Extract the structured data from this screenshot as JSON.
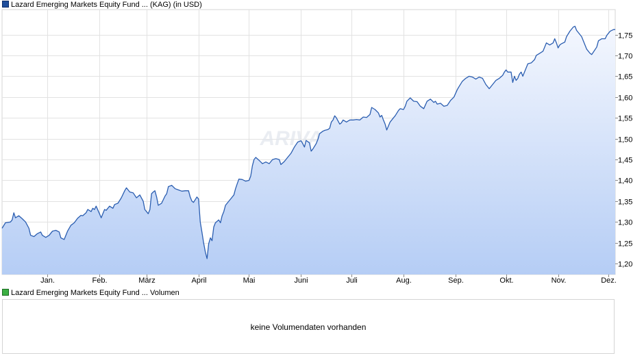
{
  "legend": {
    "price_label": "Lazard Emerging Markets Equity Fund ... (KAG)  (in USD)",
    "price_color": "#1f4e9c",
    "volume_label": "Lazard Emerging Markets Equity Fund ... Volumen",
    "volume_color": "#3cb043"
  },
  "watermark": "ARIVA.DE",
  "volume_panel": {
    "message": "keine Volumendaten vorhanden"
  },
  "chart_data": {
    "type": "area",
    "title": "",
    "xlabel": "",
    "ylabel": "",
    "x_ticks": [
      {
        "label": "Jan.",
        "x": 1
      },
      {
        "label": "Feb.",
        "x": 32
      },
      {
        "label": "März",
        "x": 60
      },
      {
        "label": "April",
        "x": 91
      },
      {
        "label": "Mai",
        "x": 121
      },
      {
        "label": "Juni",
        "x": 152
      },
      {
        "label": "Juli",
        "x": 182
      },
      {
        "label": "Aug.",
        "x": 213
      },
      {
        "label": "Sep.",
        "x": 244
      },
      {
        "label": "Okt.",
        "x": 274
      },
      {
        "label": "Nov.",
        "x": 305
      },
      {
        "label": "Dez.",
        "x": 335
      }
    ],
    "xlim": [
      -26,
      339
    ],
    "y_ticks": [
      "1,20",
      "1,25",
      "1,30",
      "1,35",
      "1,40",
      "1,45",
      "1,50",
      "1,55",
      "1,60",
      "1,65",
      "1,70",
      "1,75"
    ],
    "ylim": [
      1.174,
      1.81
    ],
    "y_tick_values": [
      1.2,
      1.25,
      1.3,
      1.35,
      1.4,
      1.45,
      1.5,
      1.55,
      1.6,
      1.65,
      1.7,
      1.75
    ],
    "grid": true,
    "line_color": "#2a5db0",
    "fill_top_color": "#f4f7fe",
    "fill_bottom_color": "#b5cdf5",
    "series": [
      {
        "points": [
          [
            -26,
            1.285
          ],
          [
            -24,
            1.298
          ],
          [
            -21,
            1.3
          ],
          [
            -20,
            1.305
          ],
          [
            -19,
            1.322
          ],
          [
            -18,
            1.31
          ],
          [
            -16,
            1.315
          ],
          [
            -14,
            1.308
          ],
          [
            -12,
            1.3
          ],
          [
            -10,
            1.285
          ],
          [
            -9,
            1.268
          ],
          [
            -7,
            1.265
          ],
          [
            -5,
            1.272
          ],
          [
            -3,
            1.276
          ],
          [
            -2,
            1.268
          ],
          [
            0,
            1.263
          ],
          [
            2,
            1.268
          ],
          [
            4,
            1.278
          ],
          [
            6,
            1.28
          ],
          [
            8,
            1.276
          ],
          [
            9,
            1.262
          ],
          [
            11,
            1.258
          ],
          [
            13,
            1.278
          ],
          [
            15,
            1.292
          ],
          [
            17,
            1.298
          ],
          [
            19,
            1.309
          ],
          [
            21,
            1.316
          ],
          [
            22,
            1.315
          ],
          [
            24,
            1.322
          ],
          [
            25,
            1.33
          ],
          [
            27,
            1.325
          ],
          [
            28,
            1.333
          ],
          [
            29,
            1.33
          ],
          [
            30,
            1.338
          ],
          [
            32,
            1.32
          ],
          [
            33,
            1.31
          ],
          [
            35,
            1.33
          ],
          [
            36,
            1.328
          ],
          [
            38,
            1.338
          ],
          [
            40,
            1.333
          ],
          [
            41,
            1.342
          ],
          [
            43,
            1.345
          ],
          [
            45,
            1.358
          ],
          [
            47,
            1.375
          ],
          [
            48,
            1.382
          ],
          [
            50,
            1.372
          ],
          [
            52,
            1.37
          ],
          [
            54,
            1.358
          ],
          [
            56,
            1.365
          ],
          [
            58,
            1.35
          ],
          [
            59,
            1.33
          ],
          [
            61,
            1.32
          ],
          [
            62,
            1.33
          ],
          [
            63,
            1.368
          ],
          [
            64,
            1.372
          ],
          [
            65,
            1.375
          ],
          [
            66,
            1.36
          ],
          [
            67,
            1.34
          ],
          [
            69,
            1.345
          ],
          [
            71,
            1.362
          ],
          [
            72,
            1.368
          ],
          [
            73,
            1.385
          ],
          [
            75,
            1.388
          ],
          [
            77,
            1.38
          ],
          [
            79,
            1.377
          ],
          [
            81,
            1.374
          ],
          [
            83,
            1.375
          ],
          [
            85,
            1.375
          ],
          [
            86,
            1.36
          ],
          [
            87,
            1.35
          ],
          [
            88,
            1.347
          ],
          [
            90,
            1.36
          ],
          [
            91,
            1.355
          ],
          [
            92,
            1.3
          ],
          [
            93,
            1.275
          ],
          [
            94,
            1.25
          ],
          [
            95,
            1.228
          ],
          [
            96,
            1.212
          ],
          [
            97,
            1.248
          ],
          [
            98,
            1.262
          ],
          [
            99,
            1.255
          ],
          [
            100,
            1.288
          ],
          [
            101,
            1.298
          ],
          [
            103,
            1.305
          ],
          [
            104,
            1.298
          ],
          [
            105,
            1.315
          ],
          [
            106,
            1.325
          ],
          [
            107,
            1.34
          ],
          [
            108,
            1.345
          ],
          [
            110,
            1.355
          ],
          [
            112,
            1.365
          ],
          [
            113,
            1.38
          ],
          [
            114,
            1.392
          ],
          [
            115,
            1.403
          ],
          [
            117,
            1.402
          ],
          [
            119,
            1.398
          ],
          [
            121,
            1.4
          ],
          [
            122,
            1.41
          ],
          [
            123,
            1.435
          ],
          [
            124,
            1.45
          ],
          [
            125,
            1.455
          ],
          [
            127,
            1.448
          ],
          [
            129,
            1.44
          ],
          [
            131,
            1.444
          ],
          [
            133,
            1.44
          ],
          [
            135,
            1.45
          ],
          [
            137,
            1.452
          ],
          [
            139,
            1.45
          ],
          [
            140,
            1.438
          ],
          [
            142,
            1.445
          ],
          [
            144,
            1.455
          ],
          [
            146,
            1.465
          ],
          [
            148,
            1.48
          ],
          [
            150,
            1.492
          ],
          [
            152,
            1.495
          ],
          [
            153,
            1.488
          ],
          [
            154,
            1.48
          ],
          [
            155,
            1.496
          ],
          [
            157,
            1.49
          ],
          [
            158,
            1.47
          ],
          [
            159,
            1.475
          ],
          [
            161,
            1.488
          ],
          [
            162,
            1.498
          ],
          [
            163,
            1.512
          ],
          [
            165,
            1.518
          ],
          [
            166,
            1.52
          ],
          [
            168,
            1.522
          ],
          [
            169,
            1.525
          ],
          [
            170,
            1.54
          ],
          [
            171,
            1.545
          ],
          [
            172,
            1.555
          ],
          [
            173,
            1.55
          ],
          [
            175,
            1.535
          ],
          [
            176,
            1.538
          ],
          [
            177,
            1.545
          ],
          [
            179,
            1.54
          ],
          [
            181,
            1.545
          ],
          [
            183,
            1.545
          ],
          [
            185,
            1.546
          ],
          [
            187,
            1.545
          ],
          [
            189,
            1.552
          ],
          [
            191,
            1.551
          ],
          [
            193,
            1.558
          ],
          [
            194,
            1.575
          ],
          [
            196,
            1.57
          ],
          [
            198,
            1.562
          ],
          [
            199,
            1.552
          ],
          [
            200,
            1.556
          ],
          [
            201,
            1.545
          ],
          [
            202,
            1.535
          ],
          [
            203,
            1.521
          ],
          [
            205,
            1.54
          ],
          [
            207,
            1.55
          ],
          [
            208,
            1.555
          ],
          [
            210,
            1.568
          ],
          [
            211,
            1.572
          ],
          [
            213,
            1.57
          ],
          [
            214,
            1.578
          ],
          [
            215,
            1.59
          ],
          [
            217,
            1.598
          ],
          [
            219,
            1.59
          ],
          [
            221,
            1.589
          ],
          [
            223,
            1.578
          ],
          [
            225,
            1.572
          ],
          [
            227,
            1.59
          ],
          [
            229,
            1.595
          ],
          [
            231,
            1.587
          ],
          [
            232,
            1.59
          ],
          [
            233,
            1.583
          ],
          [
            235,
            1.585
          ],
          [
            237,
            1.578
          ],
          [
            239,
            1.58
          ],
          [
            241,
            1.592
          ],
          [
            243,
            1.6
          ],
          [
            245,
            1.618
          ],
          [
            246,
            1.625
          ],
          [
            248,
            1.638
          ],
          [
            250,
            1.645
          ],
          [
            252,
            1.65
          ],
          [
            254,
            1.648
          ],
          [
            256,
            1.643
          ],
          [
            258,
            1.648
          ],
          [
            260,
            1.645
          ],
          [
            262,
            1.63
          ],
          [
            264,
            1.62
          ],
          [
            266,
            1.63
          ],
          [
            268,
            1.64
          ],
          [
            270,
            1.645
          ],
          [
            272,
            1.652
          ],
          [
            273,
            1.66
          ],
          [
            274,
            1.665
          ],
          [
            275,
            1.66
          ],
          [
            277,
            1.66
          ],
          [
            278,
            1.635
          ],
          [
            279,
            1.65
          ],
          [
            280,
            1.64
          ],
          [
            281,
            1.645
          ],
          [
            282,
            1.655
          ],
          [
            283,
            1.66
          ],
          [
            284,
            1.65
          ],
          [
            286,
            1.67
          ],
          [
            287,
            1.68
          ],
          [
            289,
            1.682
          ],
          [
            291,
            1.69
          ],
          [
            292,
            1.7
          ],
          [
            294,
            1.705
          ],
          [
            296,
            1.71
          ],
          [
            298,
            1.73
          ],
          [
            300,
            1.725
          ],
          [
            302,
            1.73
          ],
          [
            303,
            1.74
          ],
          [
            304,
            1.73
          ],
          [
            305,
            1.718
          ],
          [
            306,
            1.725
          ],
          [
            307,
            1.728
          ],
          [
            309,
            1.732
          ],
          [
            310,
            1.745
          ],
          [
            312,
            1.758
          ],
          [
            314,
            1.768
          ],
          [
            315,
            1.77
          ],
          [
            316,
            1.76
          ],
          [
            318,
            1.75
          ],
          [
            319,
            1.745
          ],
          [
            320,
            1.735
          ],
          [
            322,
            1.715
          ],
          [
            324,
            1.705
          ],
          [
            325,
            1.702
          ],
          [
            326,
            1.708
          ],
          [
            328,
            1.72
          ],
          [
            329,
            1.735
          ],
          [
            331,
            1.74
          ],
          [
            333,
            1.74
          ],
          [
            334,
            1.748
          ],
          [
            336,
            1.758
          ],
          [
            338,
            1.762
          ],
          [
            339,
            1.762
          ]
        ]
      }
    ]
  }
}
